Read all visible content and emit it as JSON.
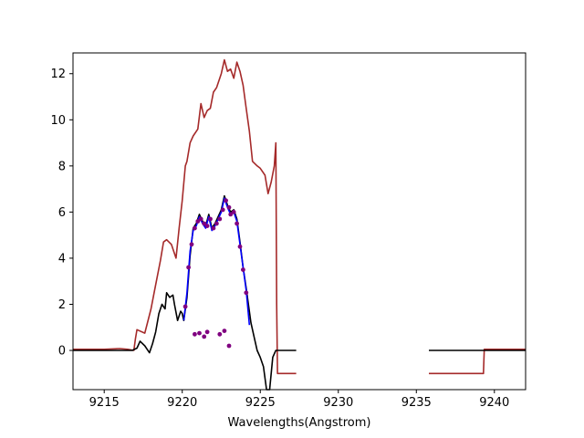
{
  "chart_data": {
    "type": "line",
    "title": "",
    "xlabel": "Wavelengths(Angstrom)",
    "ylabel": "",
    "xlim": [
      9213.0,
      9242.0
    ],
    "ylim": [
      -1.7,
      12.9
    ],
    "xticks": [
      9215,
      9220,
      9225,
      9230,
      9235,
      9240
    ],
    "yticks": [
      0,
      2,
      4,
      6,
      8,
      10,
      12
    ],
    "grid": false,
    "legend": "none",
    "series": [
      {
        "color": "#a52a2a",
        "kind": "line",
        "segments": [
          {
            "x": [
              9213.0,
              9214.0,
              9215.0,
              9216.0,
              9216.5,
              9216.9,
              9217.0,
              9217.1,
              9217.6,
              9218.0,
              9218.2,
              9218.6,
              9218.8,
              9219.0,
              9219.3,
              9219.6,
              9219.8,
              9220.0,
              9220.2,
              9220.3,
              9220.5,
              9220.7,
              9221.0,
              9221.2,
              9221.4,
              9221.6,
              9221.8,
              9222.0,
              9222.2,
              9222.5,
              9222.7,
              9222.9,
              9223.1,
              9223.3,
              9223.5,
              9223.7,
              9223.9,
              9224.1,
              9224.3,
              9224.5,
              9224.8,
              9225.0,
              9225.3,
              9225.5,
              9225.7,
              9225.9,
              9226.0,
              9226.05,
              9226.1,
              9226.5,
              9227.3
            ],
            "y": [
              0.05,
              0.05,
              0.05,
              0.08,
              0.05,
              0.0,
              0.5,
              0.9,
              0.75,
              1.8,
              2.5,
              3.9,
              4.7,
              4.8,
              4.6,
              4.0,
              5.3,
              6.5,
              8.0,
              8.2,
              9.0,
              9.3,
              9.6,
              10.7,
              10.1,
              10.4,
              10.5,
              11.2,
              11.4,
              12.0,
              12.6,
              12.1,
              12.2,
              11.8,
              12.5,
              12.1,
              11.5,
              10.5,
              9.5,
              8.2,
              8.0,
              7.9,
              7.6,
              6.8,
              7.3,
              8.0,
              9.0,
              2.0,
              -1.0,
              -1.0,
              -1.0
            ]
          },
          {
            "x": [
              9235.8,
              9239.3,
              9239.35,
              9240.0,
              9242.0
            ],
            "y": [
              -1.0,
              -1.0,
              0.05,
              0.05,
              0.05
            ]
          }
        ]
      },
      {
        "color": "#000000",
        "kind": "line",
        "segments": [
          {
            "x": [
              9213.0,
              9215.0,
              9216.0,
              9216.8,
              9217.1,
              9217.3,
              9217.6,
              9217.9,
              9218.1,
              9218.3,
              9218.5,
              9218.7,
              9218.9,
              9219.0,
              9219.2,
              9219.4,
              9219.5,
              9219.7,
              9219.9,
              9220.0,
              9220.1,
              9220.3,
              9220.5,
              9220.7,
              9220.9,
              9221.1,
              9221.3,
              9221.5,
              9221.7,
              9221.9,
              9222.1,
              9222.3,
              9222.5,
              9222.7,
              9222.9,
              9223.1,
              9223.3,
              9223.5,
              9223.7,
              9223.9,
              9224.1,
              9224.4,
              9224.6,
              9224.8,
              9225.0,
              9225.2,
              9225.4,
              9225.6,
              9225.8,
              9226.0,
              9226.2,
              9226.5,
              9227.3
            ],
            "y": [
              0.0,
              0.0,
              0.0,
              0.0,
              0.1,
              0.4,
              0.2,
              -0.1,
              0.3,
              0.8,
              1.6,
              2.0,
              1.8,
              2.5,
              2.3,
              2.4,
              2.0,
              1.3,
              1.7,
              1.6,
              1.3,
              2.3,
              4.1,
              5.3,
              5.5,
              5.9,
              5.6,
              5.4,
              5.9,
              5.3,
              5.5,
              5.8,
              6.1,
              6.7,
              6.3,
              6.0,
              6.1,
              5.7,
              4.7,
              3.6,
              2.7,
              1.2,
              0.6,
              0.0,
              -0.3,
              -0.7,
              -1.7,
              -1.7,
              -0.3,
              0.0,
              0.0,
              0.0,
              0.0
            ]
          },
          {
            "x": [
              9235.8,
              9238.0,
              9240.0,
              9242.0
            ],
            "y": [
              0.0,
              0.0,
              0.0,
              0.0
            ]
          }
        ]
      },
      {
        "color": "#0000ff",
        "kind": "line",
        "segments": [
          {
            "x": [
              9220.1,
              9220.3,
              9220.5,
              9220.7,
              9220.9,
              9221.1,
              9221.3,
              9221.5,
              9221.7,
              9221.9,
              9222.1,
              9222.3,
              9222.5,
              9222.7,
              9222.9,
              9223.1,
              9223.3,
              9223.5,
              9223.7,
              9223.9,
              9224.1,
              9224.3
            ],
            "y": [
              1.3,
              2.5,
              4.3,
              5.2,
              5.4,
              5.8,
              5.5,
              5.3,
              5.8,
              5.2,
              5.4,
              5.7,
              6.0,
              6.6,
              6.2,
              5.9,
              6.0,
              5.6,
              4.6,
              3.6,
              2.6,
              1.1
            ]
          }
        ]
      },
      {
        "color": "#800080",
        "kind": "scatter",
        "x": [
          9220.2,
          9220.4,
          9220.6,
          9220.8,
          9221.0,
          9221.2,
          9221.4,
          9221.6,
          9221.8,
          9222.0,
          9222.2,
          9222.4,
          9222.6,
          9222.8,
          9223.0,
          9223.1,
          9223.3,
          9223.5,
          9223.7,
          9223.9,
          9224.1,
          9220.8,
          9221.1,
          9221.4,
          9221.6,
          9222.4,
          9222.7,
          9223.0
        ],
        "y": [
          1.9,
          3.6,
          4.6,
          5.3,
          5.6,
          5.7,
          5.5,
          5.4,
          5.7,
          5.3,
          5.5,
          5.7,
          6.1,
          6.5,
          6.2,
          5.9,
          6.0,
          5.5,
          4.5,
          3.5,
          2.5,
          0.7,
          0.75,
          0.6,
          0.8,
          0.7,
          0.85,
          0.2
        ]
      }
    ]
  }
}
